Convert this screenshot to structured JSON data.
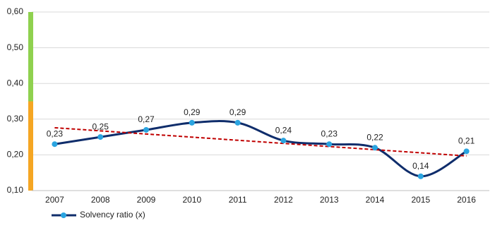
{
  "chart_data": {
    "type": "line",
    "categories": [
      "2007",
      "2008",
      "2009",
      "2010",
      "2011",
      "2012",
      "2013",
      "2014",
      "2015",
      "2016"
    ],
    "series": [
      {
        "name": "Solvency ratio (x)",
        "color": "#0f2d6b",
        "marker_color": "#2aa4e0",
        "values": [
          0.23,
          0.25,
          0.27,
          0.29,
          0.29,
          0.24,
          0.23,
          0.22,
          0.14,
          0.21
        ],
        "value_labels": [
          "0,23",
          "0,25",
          "0,27",
          "0,29",
          "0,29",
          "0,24",
          "0,23",
          "0,22",
          "0,14",
          "0,21"
        ]
      }
    ],
    "trend": {
      "color": "#c00000",
      "values": [
        0.276,
        0.197
      ]
    },
    "bands": [
      {
        "from": 0.1,
        "to": 0.35,
        "color": "#f5a623"
      },
      {
        "from": 0.35,
        "to": 0.6,
        "color": "#8fd14f"
      }
    ],
    "ylim": [
      0.1,
      0.6
    ],
    "yticks": [
      {
        "value": 0.1,
        "label": "0,10"
      },
      {
        "value": 0.2,
        "label": "0,20"
      },
      {
        "value": 0.3,
        "label": "0,30"
      },
      {
        "value": 0.4,
        "label": "0,40"
      },
      {
        "value": 0.5,
        "label": "0,50"
      },
      {
        "value": 0.6,
        "label": "0,60"
      }
    ],
    "grid": true,
    "smooth": true,
    "legend": "bottom-left"
  }
}
